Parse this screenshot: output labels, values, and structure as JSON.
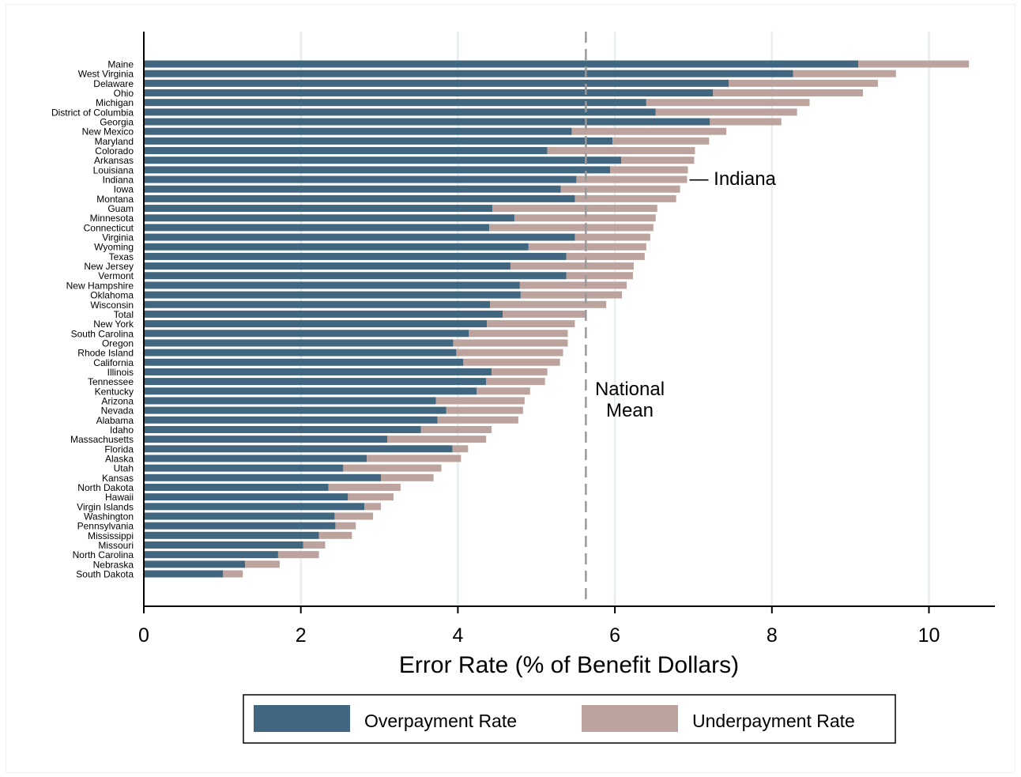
{
  "chart_data": {
    "type": "bar",
    "orientation": "horizontal",
    "stacked": true,
    "xlabel": "Error Rate (% of Benefit Dollars)",
    "xlim": [
      0,
      10.85
    ],
    "xticks": [
      0,
      2,
      4,
      6,
      8,
      10
    ],
    "grid": "vertical",
    "legend_position": "bottom",
    "categories": [
      "Maine",
      "West Virginia",
      "Delaware",
      "Ohio",
      "Michigan",
      "District of Columbia",
      "Georgia",
      "New Mexico",
      "Maryland",
      "Colorado",
      "Arkansas",
      "Louisiana",
      "Indiana",
      "Iowa",
      "Montana",
      "Guam",
      "Minnesota",
      "Connecticut",
      "Virginia",
      "Wyoming",
      "Texas",
      "New Jersey",
      "Vermont",
      "New Hampshire",
      "Oklahoma",
      "Wisconsin",
      "Total",
      "New York",
      "South Carolina",
      "Oregon",
      "Rhode Island",
      "California",
      "Illinois",
      "Tennessee",
      "Kentucky",
      "Arizona",
      "Nevada",
      "Alabama",
      "Idaho",
      "Massachusetts",
      "Florida",
      "Alaska",
      "Utah",
      "Kansas",
      "North Dakota",
      "Hawaii",
      "Virgin Islands",
      "Washington",
      "Pennsylvania",
      "Mississippi",
      "Missouri",
      "North Carolina",
      "Nebraska",
      "South Dakota"
    ],
    "series": [
      {
        "name": "Overpayment Rate",
        "color": "#41667f",
        "values": [
          9.1,
          8.27,
          7.45,
          7.25,
          6.4,
          6.52,
          7.21,
          5.45,
          5.97,
          5.14,
          6.08,
          5.94,
          5.51,
          5.31,
          5.49,
          4.44,
          4.72,
          4.4,
          5.49,
          4.9,
          5.38,
          4.67,
          5.38,
          4.79,
          4.8,
          4.41,
          4.57,
          4.37,
          4.14,
          3.94,
          3.98,
          4.07,
          4.43,
          4.36,
          4.24,
          3.72,
          3.85,
          3.74,
          3.53,
          3.1,
          3.93,
          2.84,
          2.54,
          3.02,
          2.35,
          2.6,
          2.81,
          2.43,
          2.44,
          2.23,
          2.03,
          1.71,
          1.29,
          1.01
        ]
      },
      {
        "name": "Underpayment Rate",
        "color": "#bca39d",
        "values": [
          1.41,
          1.31,
          1.9,
          1.91,
          2.08,
          1.8,
          0.91,
          1.97,
          1.23,
          1.88,
          0.93,
          0.99,
          1.41,
          1.52,
          1.29,
          2.1,
          1.8,
          2.09,
          0.96,
          1.5,
          1.0,
          1.57,
          0.85,
          1.36,
          1.29,
          1.48,
          1.07,
          1.12,
          1.26,
          1.46,
          1.36,
          1.23,
          0.71,
          0.75,
          0.68,
          1.13,
          0.98,
          1.03,
          0.9,
          1.26,
          0.2,
          1.2,
          1.25,
          0.67,
          0.92,
          0.58,
          0.21,
          0.49,
          0.26,
          0.42,
          0.28,
          0.52,
          0.44,
          0.25
        ]
      }
    ],
    "reference_line": {
      "value": 5.63,
      "style": "dashed",
      "color": "#999999"
    },
    "annotations": [
      {
        "text": "— Indiana",
        "category": "Indiana"
      },
      {
        "text_lines": [
          "National",
          "Mean"
        ]
      }
    ]
  }
}
